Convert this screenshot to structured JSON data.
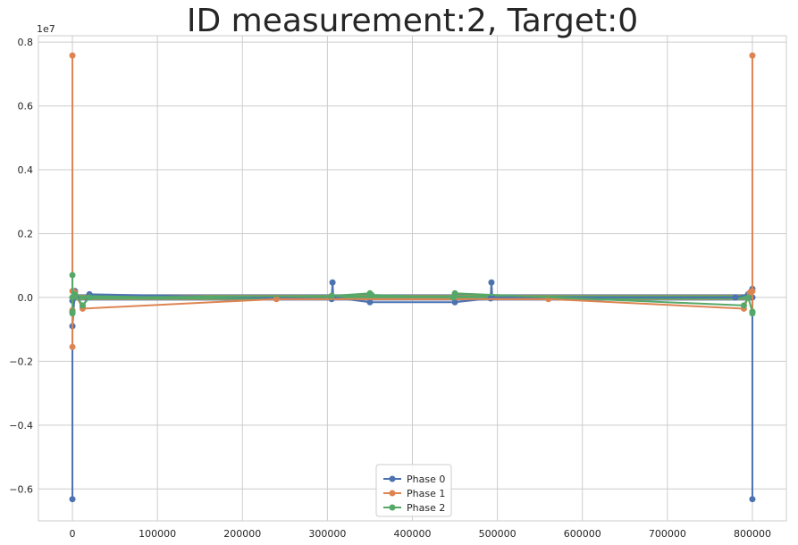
{
  "chart_data": {
    "type": "line",
    "title": "ID measurement:2, Target:0",
    "xlabel": "",
    "ylabel": "",
    "offset_label": "1e7",
    "xlim": [
      -40000,
      840000
    ],
    "ylim": [
      -0.7,
      0.82
    ],
    "grid": true,
    "legend_position": "bottom-center",
    "x_ticks": [
      0,
      100000,
      200000,
      300000,
      400000,
      500000,
      600000,
      700000,
      800000
    ],
    "x_tick_labels": [
      "0",
      "100000",
      "200000",
      "300000",
      "400000",
      "500000",
      "600000",
      "700000",
      "800000"
    ],
    "y_ticks": [
      -0.6,
      -0.4,
      -0.2,
      0.0,
      0.2,
      0.4,
      0.6,
      0.8
    ],
    "y_tick_labels": [
      "−0.6",
      "−0.4",
      "−0.2",
      "0.0",
      "0.2",
      "0.4",
      "0.6",
      "0.8"
    ],
    "series": [
      {
        "name": "Phase 0",
        "color": "#4c72b0",
        "x": [
          0,
          0,
          0,
          3000,
          12000,
          20000,
          305000,
          306000,
          307000,
          350000,
          450000,
          492000,
          493000,
          494000,
          780000,
          795000,
          799000,
          800000,
          800000,
          800000
        ],
        "y": [
          -0.01,
          -0.632,
          -0.09,
          0.02,
          -0.03,
          0.01,
          -0.005,
          0.047,
          0.0,
          -0.015,
          -0.015,
          -0.003,
          0.047,
          0.0,
          0.0,
          0.01,
          0.02,
          0.027,
          -0.632,
          0.0
        ]
      },
      {
        "name": "Phase 1",
        "color": "#dd8452",
        "x": [
          0,
          0,
          0,
          0,
          3000,
          12000,
          240000,
          560000,
          790000,
          797000,
          800000,
          800000,
          800000
        ],
        "y": [
          -0.04,
          0.758,
          -0.155,
          0.02,
          0.015,
          -0.035,
          -0.005,
          -0.005,
          -0.035,
          0.015,
          0.02,
          0.758,
          -0.045
        ]
      },
      {
        "name": "Phase 2",
        "color": "#55a868",
        "x": [
          0,
          0,
          0,
          0,
          3000,
          12000,
          20000,
          305000,
          350000,
          352000,
          448000,
          450000,
          790000,
          795000,
          800000,
          800000
        ],
        "y": [
          -0.045,
          0.07,
          -0.05,
          0.0,
          0.01,
          -0.025,
          0.0,
          0.005,
          0.013,
          0.008,
          0.0,
          0.013,
          -0.025,
          0.0,
          -0.045,
          -0.05
        ]
      }
    ]
  }
}
